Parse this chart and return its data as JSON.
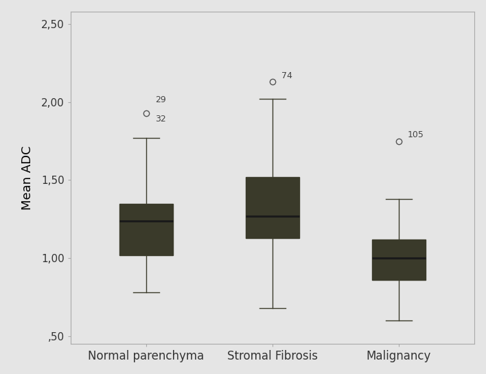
{
  "categories": [
    "Normal parenchyma",
    "Stromal Fibrosis",
    "Malignancy"
  ],
  "box_data": [
    {
      "whislo": 0.78,
      "q1": 1.02,
      "med": 1.24,
      "q3": 1.35,
      "whishi": 1.77
    },
    {
      "whislo": 0.68,
      "q1": 1.13,
      "med": 1.27,
      "q3": 1.52,
      "whishi": 2.02
    },
    {
      "whislo": 0.6,
      "q1": 0.86,
      "med": 1.0,
      "q3": 1.12,
      "whishi": 1.38
    }
  ],
  "outlier_labels": [
    [
      "29",
      "32"
    ],
    [
      "74"
    ],
    [
      "105"
    ]
  ],
  "outlier_values": [
    [
      1.955,
      1.93
    ],
    [
      2.13
    ],
    [
      1.75
    ]
  ],
  "outlier_label_offsets": [
    [
      [
        0.06,
        0.01
      ],
      [
        0.06,
        0.01
      ]
    ],
    [
      [
        0.06,
        0.01
      ]
    ],
    [
      [
        0.06,
        0.01
      ]
    ]
  ],
  "ylabel": "Mean ADC",
  "ylim": [
    0.45,
    2.58
  ],
  "yticks": [
    0.5,
    1.0,
    1.5,
    2.0,
    2.5
  ],
  "ytick_labels": [
    ",50",
    "1,00",
    "1,50",
    "2,00",
    "2,50"
  ],
  "box_color": "#c8c87d",
  "box_edge_color": "#3a3a2a",
  "median_color": "#1a1a1a",
  "whisker_color": "#3a3a2a",
  "cap_color": "#3a3a2a",
  "flier_marker_edge_color": "#555555",
  "flier_marker_face_color": "none",
  "annotation_color": "#444444",
  "background_color": "#e5e5e5",
  "plot_bg_color": "#e5e5e5",
  "spine_color": "#aaaaaa",
  "label_fontsize": 12,
  "tick_fontsize": 11,
  "annotation_fontsize": 9,
  "box_width": 0.42,
  "positions": [
    1,
    2,
    3
  ],
  "xlim": [
    0.4,
    3.6
  ]
}
